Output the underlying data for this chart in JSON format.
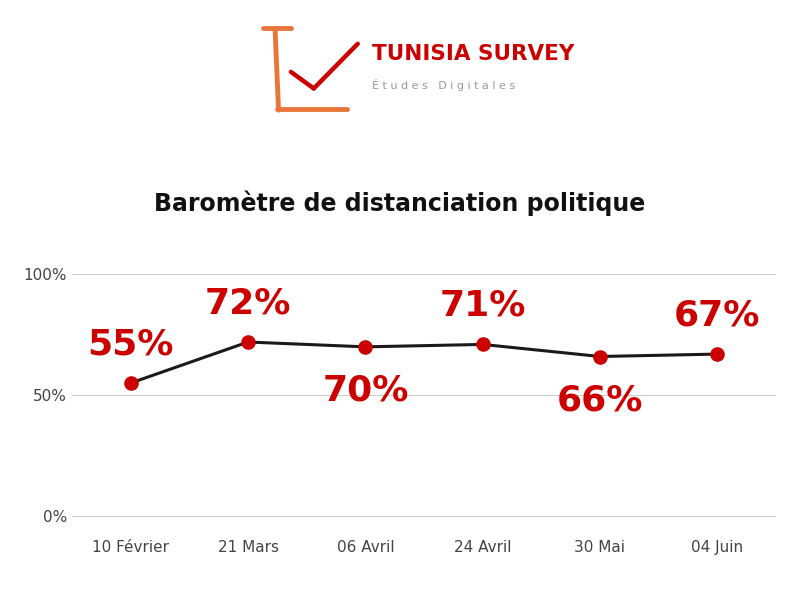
{
  "title": "Baromètre de distanciation politique",
  "categories": [
    "10 Février",
    "21 Mars",
    "06 Avril",
    "24 Avril",
    "30 Mai",
    "04 Juin"
  ],
  "values": [
    55,
    72,
    70,
    71,
    66,
    67
  ],
  "labels": [
    "55%",
    "72%",
    "70%",
    "71%",
    "66%",
    "67%"
  ],
  "line_color": "#1a1a1a",
  "marker_color": "#cc0000",
  "label_color": "#cc0000",
  "background_color": "#ffffff",
  "title_fontsize": 17,
  "label_fontsize": 26,
  "yticks": [
    0,
    50,
    100
  ],
  "ytick_labels": [
    "0%",
    "50%",
    "100%"
  ],
  "ylim": [
    -8,
    118
  ],
  "label_offsets_y": [
    9,
    9,
    -11,
    9,
    -11,
    9
  ],
  "logo_main": "TUNISIA SURVEY",
  "logo_sub": "É t u d e s   D i g i t a l e s",
  "logo_main_color": "#cc0000",
  "logo_sub_color": "#999999",
  "logo_bracket_color": "#E8763A",
  "logo_check_color": "#cc0000"
}
